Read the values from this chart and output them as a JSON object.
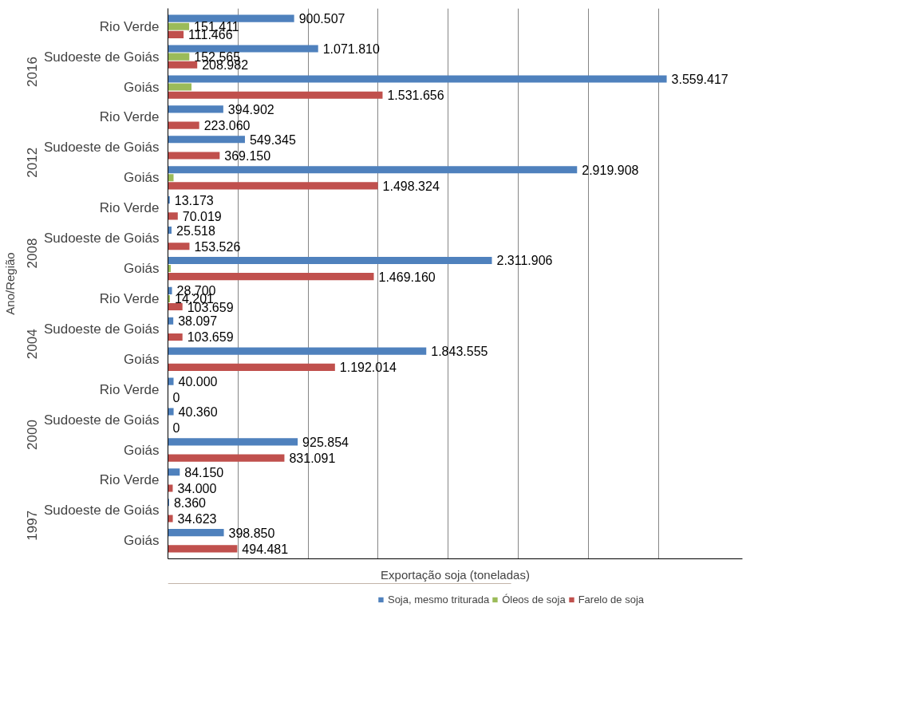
{
  "chart_data": {
    "type": "bar",
    "orientation": "horizontal",
    "xlabel": "Exportação soja (toneladas)",
    "ylabel": "Ano/Região",
    "categories": [
      "Rio Verde",
      "Sudoeste de Goiás",
      "Goiás",
      "Rio Verde",
      "Sudoeste de Goiás",
      "Goiás",
      "Rio Verde",
      "Sudoeste de Goiás",
      "Goiás",
      "Rio Verde",
      "Sudoeste de Goiás",
      "Goiás",
      "Rio Verde",
      "Sudoeste de Goiás",
      "Goiás",
      "Rio Verde",
      "Sudoeste de Goiás",
      "Goiás"
    ],
    "annotations": [
      "2016",
      "2012",
      "2008",
      "2004",
      "2000",
      "1997"
    ],
    "series": [
      {
        "name": "Soja, mesmo triturada",
        "color": "#4f81bd",
        "values": [
          900507,
          1071810,
          3559417,
          394902,
          549345,
          2919908,
          13173,
          25518,
          2311906,
          28700,
          38097,
          1843555,
          40000,
          40360,
          925854,
          84150,
          8360,
          398850
        ],
        "value_labels": [
          "900.507",
          "1.071.810",
          "3.559.417",
          "394.902",
          "549.345",
          "2.919.908",
          "13.173",
          "25.518",
          "2.311.906",
          "28.700",
          "38.097",
          "1.843.555",
          "40.000",
          "40.360",
          "925.854",
          "84.150",
          "8.360",
          "398.850"
        ]
      },
      {
        "name": "Óleos de soja",
        "color": "#9bbb59",
        "values": [
          151411,
          152565,
          168000,
          null,
          null,
          40000,
          null,
          null,
          20000,
          14201,
          null,
          null,
          null,
          null,
          null,
          null,
          null,
          null
        ],
        "value_labels": [
          "151.411",
          "152.565",
          null,
          null,
          null,
          null,
          null,
          null,
          null,
          "14.201",
          null,
          null,
          null,
          null,
          null,
          null,
          null,
          null
        ]
      },
      {
        "name": "Farelo de soja",
        "color": "#c0504d",
        "values": [
          111466,
          208982,
          1531656,
          223060,
          369150,
          1498324,
          70019,
          153526,
          1469160,
          103659,
          103659,
          1192014,
          0,
          0,
          831091,
          34000,
          34623,
          494481
        ],
        "value_labels": [
          "111.466",
          "208.982",
          "1.531.656",
          "223.060",
          "369.150",
          "1.498.324",
          "70.019",
          "153.526",
          "1.469.160",
          "103.659",
          "103.659",
          "1.192.014",
          "0",
          "0",
          "831.091",
          "34.000",
          "34.623",
          "494.481"
        ]
      }
    ],
    "xlim": [
      0,
      4100000
    ],
    "xticks": [
      {
        "value": 0,
        "label": null
      },
      {
        "value": 500000,
        "label": null
      },
      {
        "value": 1000000,
        "label": null
      },
      {
        "value": 1500000,
        "label": null
      },
      {
        "value": 2000000,
        "label": null
      },
      {
        "value": 2500000,
        "label": null
      },
      {
        "value": 3000000,
        "label": null
      },
      {
        "value": 3500000,
        "label": null
      }
    ],
    "tick_labels": "y",
    "grid": "x",
    "legend": "bottom"
  }
}
